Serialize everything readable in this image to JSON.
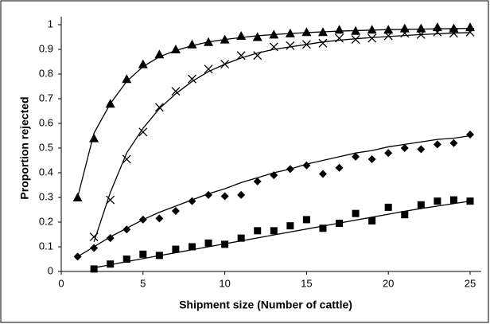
{
  "chart_data": {
    "type": "scatter",
    "x_label": "Shipment size (Number of cattle)",
    "y_label": "Proportion rejected",
    "x": [
      1,
      2,
      3,
      4,
      5,
      6,
      7,
      8,
      9,
      10,
      11,
      12,
      13,
      14,
      15,
      16,
      17,
      18,
      19,
      20,
      21,
      22,
      23,
      24,
      25
    ],
    "xlim": [
      0,
      25
    ],
    "xticks": [
      0,
      5,
      10,
      15,
      20,
      25
    ],
    "ylim": [
      0,
      1
    ],
    "yticks": [
      0,
      0.1,
      0.2,
      0.3,
      0.4,
      0.5,
      0.6,
      0.7,
      0.8,
      0.9,
      1
    ],
    "series": [
      {
        "marker": "triangle",
        "color": "#000000",
        "values": [
          0.3,
          0.54,
          0.68,
          0.78,
          0.84,
          0.88,
          0.9,
          0.92,
          0.93,
          0.94,
          0.955,
          0.95,
          0.96,
          0.965,
          0.97,
          0.97,
          0.98,
          0.975,
          0.98,
          0.98,
          0.985,
          0.985,
          0.99,
          0.985,
          0.99
        ],
        "fit": [
          0.3,
          0.56,
          0.68,
          0.77,
          0.83,
          0.87,
          0.895,
          0.915,
          0.93,
          0.94,
          0.948,
          0.955,
          0.96,
          0.964,
          0.968,
          0.971,
          0.974,
          0.976,
          0.978,
          0.98,
          0.981,
          0.982,
          0.983,
          0.984,
          0.985
        ]
      },
      {
        "marker": "cross",
        "color": "#000000",
        "values": [
          null,
          0.14,
          0.29,
          0.455,
          0.565,
          0.665,
          0.73,
          0.78,
          0.82,
          0.84,
          0.875,
          0.875,
          0.91,
          0.915,
          0.92,
          0.925,
          0.945,
          0.94,
          0.945,
          0.955,
          0.965,
          0.96,
          0.97,
          0.965,
          0.97
        ],
        "fit": [
          null,
          0.12,
          0.32,
          0.48,
          0.58,
          0.66,
          0.72,
          0.77,
          0.81,
          0.84,
          0.865,
          0.885,
          0.9,
          0.91,
          0.92,
          0.93,
          0.937,
          0.943,
          0.948,
          0.952,
          0.956,
          0.96,
          0.963,
          0.966,
          0.968
        ]
      },
      {
        "marker": "diamond",
        "color": "#000000",
        "values": [
          0.06,
          0.095,
          0.135,
          0.17,
          0.21,
          0.215,
          0.245,
          0.285,
          0.31,
          0.305,
          0.31,
          0.365,
          0.39,
          0.415,
          0.43,
          0.395,
          0.42,
          0.465,
          0.455,
          0.48,
          0.5,
          0.495,
          0.515,
          0.52,
          0.555
        ],
        "fit": [
          0.06,
          0.1,
          0.14,
          0.175,
          0.21,
          0.24,
          0.265,
          0.29,
          0.315,
          0.335,
          0.36,
          0.38,
          0.4,
          0.415,
          0.435,
          0.45,
          0.465,
          0.48,
          0.49,
          0.505,
          0.515,
          0.525,
          0.535,
          0.54,
          0.55
        ]
      },
      {
        "marker": "square",
        "color": "#000000",
        "values": [
          null,
          0.01,
          0.03,
          0.05,
          0.07,
          0.065,
          0.09,
          0.1,
          0.115,
          0.11,
          0.135,
          0.165,
          0.165,
          0.185,
          0.21,
          0.175,
          0.195,
          0.235,
          0.205,
          0.26,
          0.23,
          0.27,
          0.285,
          0.29,
          0.285
        ],
        "fit": [
          null,
          0.015,
          0.027,
          0.04,
          0.052,
          0.064,
          0.076,
          0.088,
          0.1,
          0.112,
          0.124,
          0.136,
          0.148,
          0.16,
          0.172,
          0.184,
          0.196,
          0.208,
          0.22,
          0.232,
          0.244,
          0.255,
          0.265,
          0.275,
          0.285
        ]
      }
    ]
  }
}
